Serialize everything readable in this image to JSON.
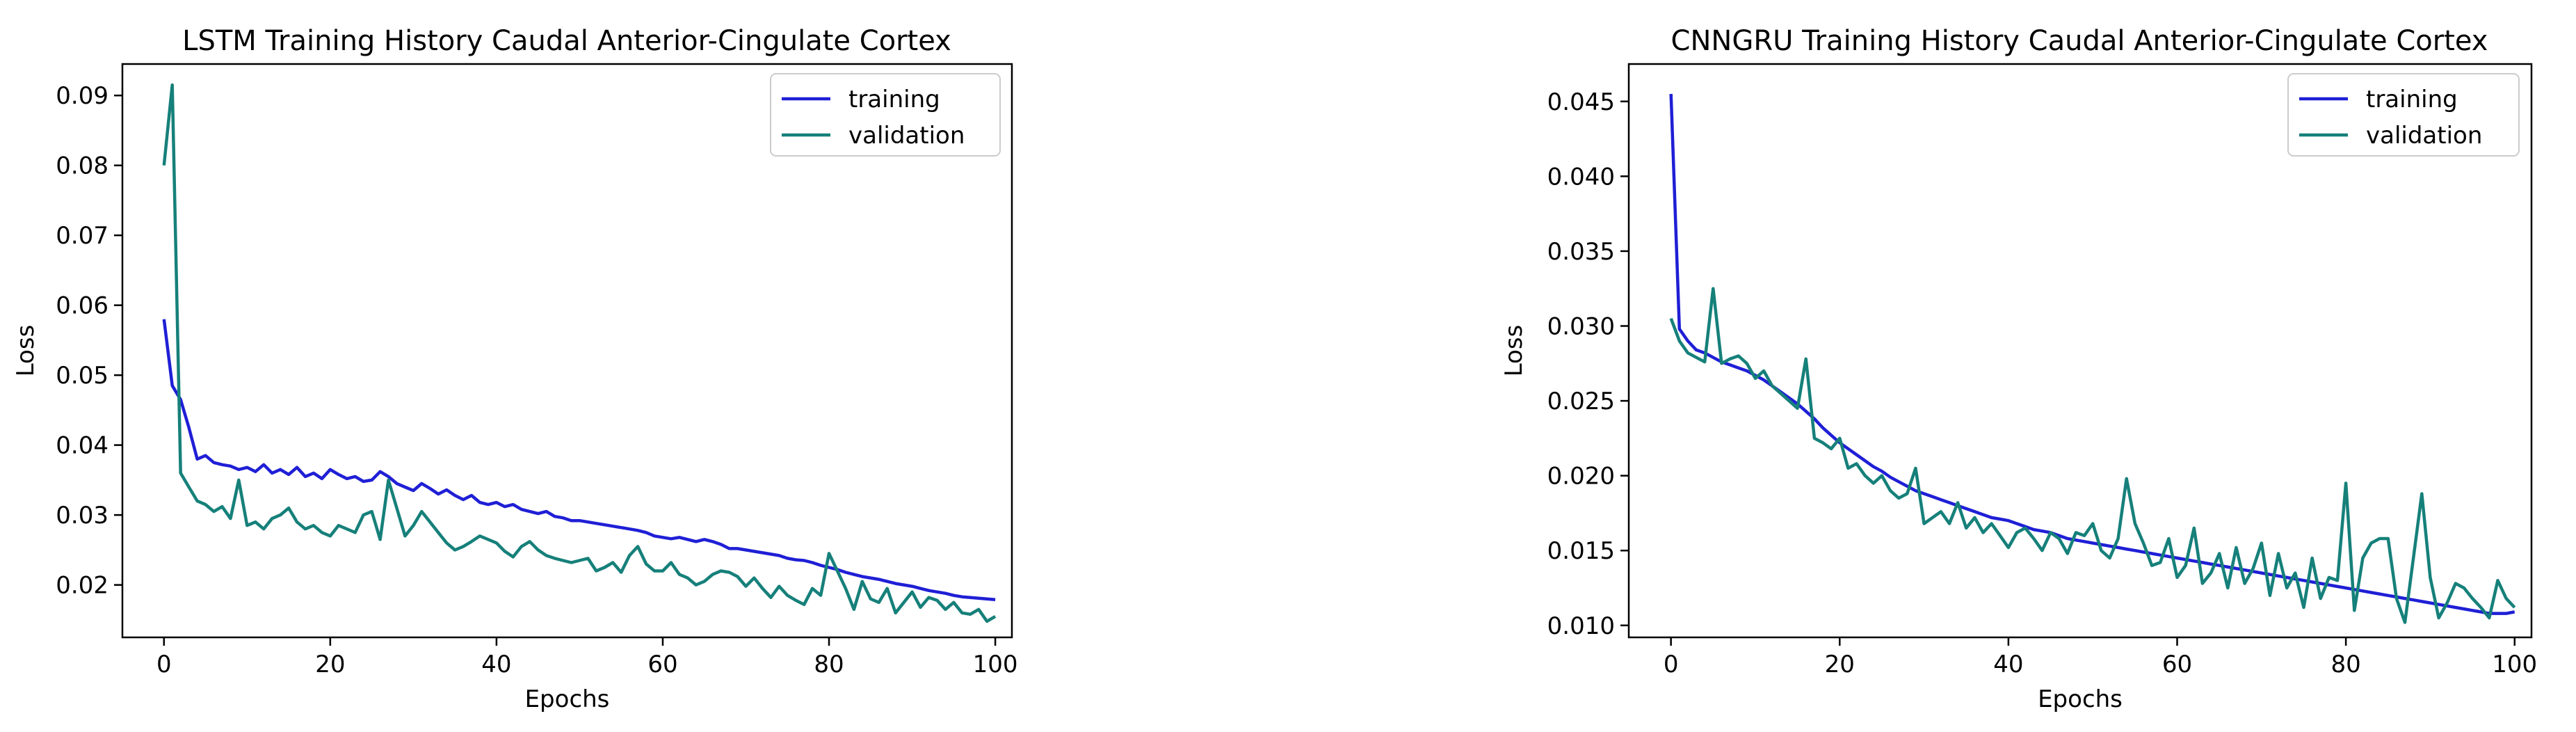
{
  "chart_data": [
    {
      "type": "line",
      "title": "LSTM Training History Caudal Anterior-Cingulate Cortex",
      "xlabel": "Epochs",
      "ylabel": "Loss",
      "xlim": [
        -5,
        102
      ],
      "ylim": [
        0.0125,
        0.0945
      ],
      "xticks": [
        "0",
        "20",
        "40",
        "60",
        "80",
        "100"
      ],
      "yticks": [
        "0.02",
        "0.03",
        "0.04",
        "0.05",
        "0.06",
        "0.07",
        "0.08",
        "0.09"
      ],
      "legend": "top-right",
      "series": [
        {
          "name": "training",
          "color": "#1f1fd6",
          "values": [
            0.058,
            0.0485,
            0.0465,
            0.0425,
            0.038,
            0.0385,
            0.0375,
            0.0372,
            0.037,
            0.0365,
            0.0368,
            0.0362,
            0.0372,
            0.036,
            0.0365,
            0.0358,
            0.0368,
            0.0355,
            0.036,
            0.0352,
            0.0365,
            0.0358,
            0.0352,
            0.0355,
            0.0348,
            0.035,
            0.0362,
            0.0355,
            0.0345,
            0.034,
            0.0335,
            0.0345,
            0.0338,
            0.033,
            0.0336,
            0.0328,
            0.0322,
            0.0328,
            0.0318,
            0.0315,
            0.0318,
            0.0312,
            0.0315,
            0.0308,
            0.0305,
            0.0302,
            0.0305,
            0.0298,
            0.0296,
            0.0292,
            0.0292,
            0.029,
            0.0288,
            0.0286,
            0.0284,
            0.0282,
            0.028,
            0.0278,
            0.0275,
            0.027,
            0.0268,
            0.0266,
            0.0268,
            0.0265,
            0.0262,
            0.0265,
            0.0262,
            0.0258,
            0.0252,
            0.0252,
            0.025,
            0.0248,
            0.0246,
            0.0244,
            0.0242,
            0.0238,
            0.0236,
            0.0235,
            0.0232,
            0.0228,
            0.0225,
            0.0222,
            0.0218,
            0.0215,
            0.0212,
            0.021,
            0.0208,
            0.0205,
            0.0202,
            0.02,
            0.0198,
            0.0195,
            0.0192,
            0.019,
            0.0188,
            0.0185,
            0.0183,
            0.0182,
            0.0181,
            0.018,
            0.0179
          ]
        },
        {
          "name": "validation",
          "color": "#16807a",
          "values": [
            0.08,
            0.0915,
            0.036,
            0.034,
            0.032,
            0.0315,
            0.0305,
            0.0312,
            0.0295,
            0.035,
            0.0285,
            0.029,
            0.028,
            0.0295,
            0.03,
            0.031,
            0.029,
            0.028,
            0.0285,
            0.0275,
            0.027,
            0.0285,
            0.028,
            0.0275,
            0.03,
            0.0305,
            0.0265,
            0.035,
            0.031,
            0.027,
            0.0285,
            0.0305,
            0.029,
            0.0275,
            0.026,
            0.025,
            0.0255,
            0.0262,
            0.027,
            0.0265,
            0.026,
            0.0248,
            0.024,
            0.0255,
            0.0262,
            0.025,
            0.0242,
            0.0238,
            0.0235,
            0.0232,
            0.0235,
            0.0238,
            0.022,
            0.0225,
            0.0232,
            0.0218,
            0.0242,
            0.0255,
            0.023,
            0.022,
            0.022,
            0.0232,
            0.0215,
            0.021,
            0.02,
            0.0205,
            0.0215,
            0.022,
            0.0218,
            0.0212,
            0.0198,
            0.021,
            0.0195,
            0.0182,
            0.0198,
            0.0185,
            0.0178,
            0.0172,
            0.0195,
            0.0185,
            0.0245,
            0.022,
            0.0195,
            0.0165,
            0.0205,
            0.018,
            0.0175,
            0.0195,
            0.016,
            0.0175,
            0.019,
            0.0168,
            0.0182,
            0.0178,
            0.0165,
            0.0175,
            0.016,
            0.0158,
            0.0165,
            0.0148,
            0.0155
          ]
        }
      ]
    },
    {
      "type": "line",
      "title": "CNNGRU Training History Caudal Anterior-Cingulate Cortex",
      "xlabel": "Epochs",
      "ylabel": "Loss",
      "xlim": [
        -5,
        102
      ],
      "ylim": [
        0.0092,
        0.0475
      ],
      "xticks": [
        "0",
        "20",
        "40",
        "60",
        "80",
        "100"
      ],
      "yticks": [
        "0.010",
        "0.015",
        "0.020",
        "0.025",
        "0.030",
        "0.035",
        "0.040",
        "0.045"
      ],
      "legend": "top-right",
      "series": [
        {
          "name": "training",
          "color": "#1f1fd6",
          "values": [
            0.0455,
            0.0298,
            0.029,
            0.0284,
            0.0282,
            0.0279,
            0.0276,
            0.0274,
            0.0272,
            0.027,
            0.0267,
            0.0264,
            0.026,
            0.0256,
            0.0252,
            0.0248,
            0.0243,
            0.0238,
            0.0232,
            0.0227,
            0.0222,
            0.0218,
            0.0214,
            0.021,
            0.0206,
            0.0203,
            0.0199,
            0.0196,
            0.0193,
            0.019,
            0.0188,
            0.0186,
            0.0184,
            0.0182,
            0.018,
            0.0178,
            0.0176,
            0.0174,
            0.0172,
            0.0171,
            0.017,
            0.0168,
            0.0166,
            0.0164,
            0.0163,
            0.0162,
            0.016,
            0.0158,
            0.0157,
            0.0156,
            0.0155,
            0.0154,
            0.0153,
            0.0152,
            0.0151,
            0.015,
            0.0149,
            0.0148,
            0.0147,
            0.0146,
            0.0145,
            0.0144,
            0.0143,
            0.0142,
            0.0141,
            0.014,
            0.0139,
            0.0138,
            0.0137,
            0.0136,
            0.0135,
            0.0134,
            0.0133,
            0.0132,
            0.0131,
            0.013,
            0.0129,
            0.0128,
            0.0127,
            0.0126,
            0.0125,
            0.0124,
            0.0123,
            0.0122,
            0.0121,
            0.012,
            0.0119,
            0.0118,
            0.0117,
            0.0116,
            0.0115,
            0.0114,
            0.0113,
            0.0112,
            0.0111,
            0.011,
            0.0109,
            0.0108,
            0.0108,
            0.0108,
            0.0109
          ]
        },
        {
          "name": "validation",
          "color": "#16807a",
          "values": [
            0.0305,
            0.029,
            0.0282,
            0.0279,
            0.0276,
            0.0325,
            0.0275,
            0.0278,
            0.028,
            0.0275,
            0.0265,
            0.027,
            0.026,
            0.0255,
            0.025,
            0.0245,
            0.0278,
            0.0225,
            0.0222,
            0.0218,
            0.0225,
            0.0205,
            0.0208,
            0.02,
            0.0195,
            0.02,
            0.019,
            0.0185,
            0.0188,
            0.0205,
            0.0168,
            0.0172,
            0.0176,
            0.0168,
            0.0182,
            0.0165,
            0.0172,
            0.0162,
            0.0168,
            0.016,
            0.0152,
            0.0162,
            0.0165,
            0.0158,
            0.015,
            0.0162,
            0.0158,
            0.0148,
            0.0162,
            0.016,
            0.0168,
            0.015,
            0.0145,
            0.0158,
            0.0198,
            0.0168,
            0.0155,
            0.014,
            0.0142,
            0.0158,
            0.0132,
            0.014,
            0.0165,
            0.0128,
            0.0135,
            0.0148,
            0.0125,
            0.0152,
            0.0128,
            0.0138,
            0.0155,
            0.012,
            0.0148,
            0.0125,
            0.0135,
            0.0112,
            0.0145,
            0.0118,
            0.0132,
            0.013,
            0.0195,
            0.011,
            0.0145,
            0.0155,
            0.0158,
            0.0158,
            0.0118,
            0.0102,
            0.0145,
            0.0188,
            0.0132,
            0.0105,
            0.0115,
            0.0128,
            0.0125,
            0.0118,
            0.0112,
            0.0105,
            0.013,
            0.0118,
            0.0112
          ]
        }
      ]
    }
  ]
}
